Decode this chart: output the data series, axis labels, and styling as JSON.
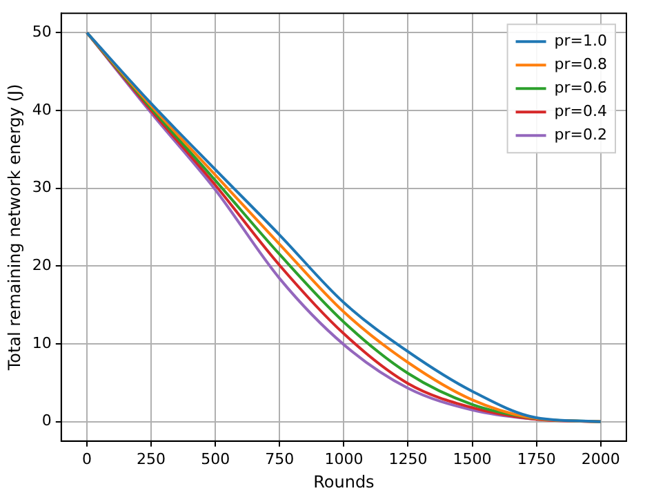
{
  "chart_data": {
    "type": "line",
    "xlabel": "Rounds",
    "ylabel": "Total remaining network energy (J)",
    "x": [
      0,
      250,
      500,
      750,
      1000,
      1250,
      1500,
      1750,
      2000
    ],
    "series": [
      {
        "name": "pr=1.0",
        "color": "#1f77b4",
        "values": [
          50,
          40.9,
          32.4,
          24.0,
          15.3,
          9.0,
          3.9,
          0.5,
          0
        ]
      },
      {
        "name": "pr=0.8",
        "color": "#ff7f0e",
        "values": [
          50,
          40.6,
          31.7,
          22.8,
          14.1,
          7.6,
          2.8,
          0.4,
          0
        ]
      },
      {
        "name": "pr=0.6",
        "color": "#2ca02c",
        "values": [
          50,
          40.3,
          31.0,
          21.5,
          12.8,
          6.2,
          2.2,
          0.4,
          0
        ]
      },
      {
        "name": "pr=0.4",
        "color": "#d62728",
        "values": [
          50,
          40.0,
          30.4,
          20.1,
          11.3,
          4.9,
          1.8,
          0.3,
          0
        ]
      },
      {
        "name": "pr=0.2",
        "color": "#9467bd",
        "values": [
          50,
          39.7,
          29.8,
          18.4,
          9.9,
          4.3,
          1.5,
          0.3,
          0
        ]
      }
    ],
    "xlim": [
      -100,
      2100
    ],
    "ylim": [
      -2.5,
      52.5
    ],
    "xticks": [
      0,
      250,
      500,
      750,
      1000,
      1250,
      1500,
      1750,
      2000
    ],
    "yticks": [
      0,
      10,
      20,
      30,
      40,
      50
    ],
    "grid": true,
    "legend": "top right",
    "marker": "none",
    "line_style": "solid"
  }
}
